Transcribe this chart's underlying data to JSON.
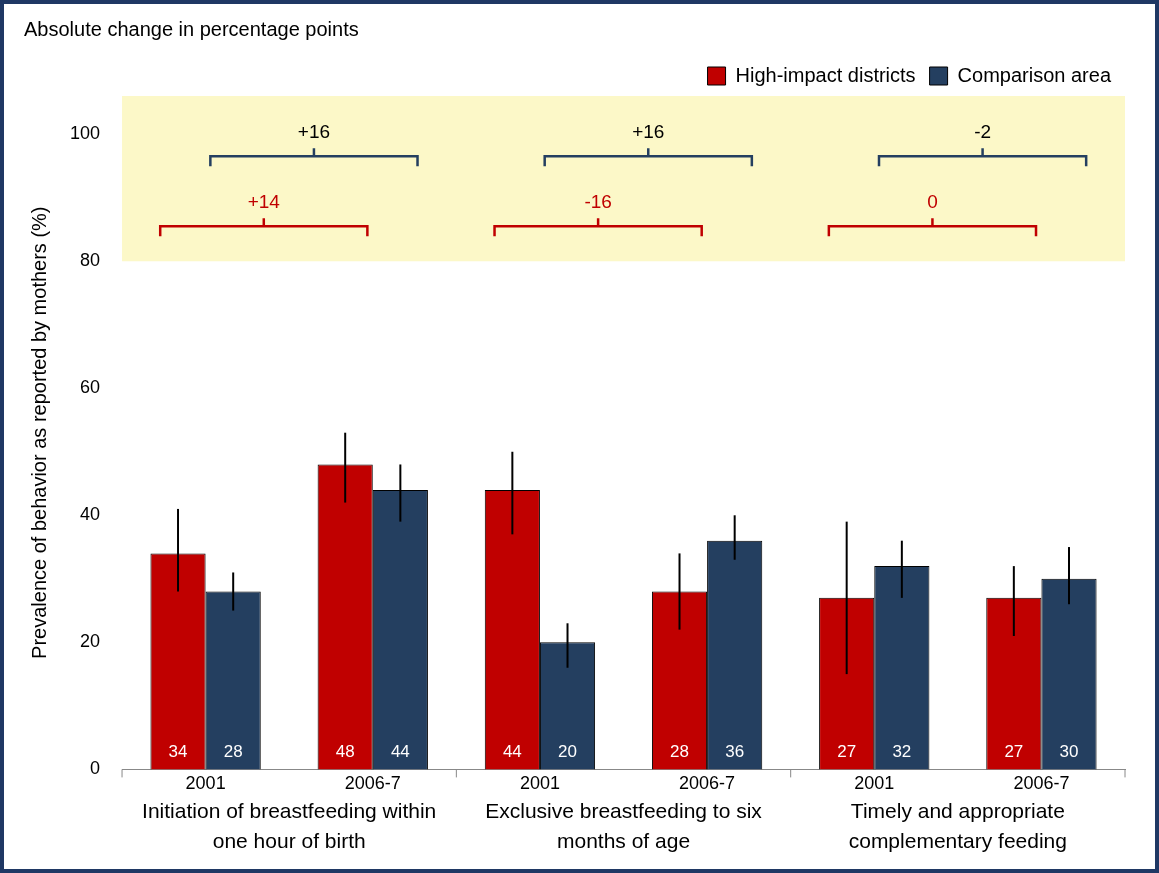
{
  "chart_data": {
    "type": "bar",
    "subtitle": "Absolute change in percentage points",
    "ylabel": "Prevalence of behavior as reported by mothers (%)",
    "categories": [
      "2001",
      "2006-7",
      "2001",
      "2006-7",
      "2001",
      "2006-7"
    ],
    "series": [
      {
        "name": "High-impact districts",
        "color": "#c00000",
        "values": [
          34,
          48,
          44,
          28,
          27,
          27
        ],
        "errors": [
          [
            28,
            41
          ],
          [
            42,
            53
          ],
          [
            37,
            50
          ],
          [
            22,
            34
          ],
          [
            15,
            39
          ],
          [
            21,
            32
          ]
        ]
      },
      {
        "name": "Comparison area",
        "color": "#243f60",
        "values": [
          28,
          44,
          20,
          36,
          32,
          30
        ],
        "errors": [
          [
            25,
            31
          ],
          [
            39,
            48
          ],
          [
            16,
            23
          ],
          [
            33,
            40
          ],
          [
            27,
            36
          ],
          [
            26,
            35
          ]
        ]
      }
    ],
    "ylim": [
      0,
      106
    ],
    "yticks": [
      0,
      20,
      40,
      60,
      80,
      100
    ],
    "grid": false,
    "legend": "top right",
    "data_labels": true,
    "bands": [
      {
        "axis": "y",
        "from": 80,
        "to": 106,
        "color": "#fcf8c8"
      }
    ],
    "annotations": [
      "Initiation of breastfeeding within one hour of birth",
      "Exclusive breastfeeding to six months of age",
      "Timely and appropriate complementary feeding",
      "+14",
      "-16",
      "0",
      "+16",
      "+16",
      "-2"
    ]
  }
}
